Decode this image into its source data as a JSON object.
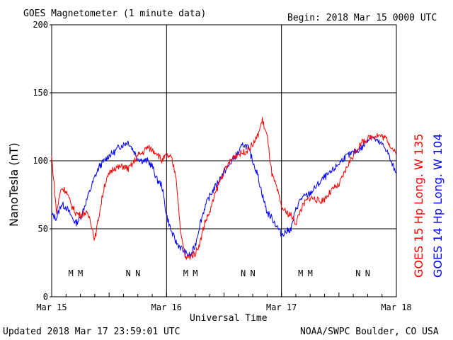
{
  "header": {
    "title": "GOES Magnetometer (1 minute data)",
    "begin": "Begin:  2018 Mar 15 0000 UTC"
  },
  "footer": {
    "updated": "Updated 2018 Mar 17 23:59:01 UTC",
    "credit": "NOAA/SWPC Boulder, CO USA"
  },
  "chart_data": {
    "type": "line",
    "ylabel": "NanoTesla (nT)",
    "xlabel": "Universal Time",
    "ylim": [
      0,
      200
    ],
    "yticks": [
      0,
      50,
      100,
      150,
      200
    ],
    "xlim_days": [
      0,
      3
    ],
    "xticks": [
      "Mar 15",
      "Mar 16",
      "Mar 17",
      "Mar 18"
    ],
    "grid": true,
    "colors": {
      "goes15": "#ff0000",
      "goes14": "#0000ff"
    },
    "legend": [
      {
        "label": "GOES 15 Hp  Long. W 135",
        "color": "#ff0000"
      },
      {
        "label": "GOES 14 Hp  Long. W 104",
        "color": "#0000ff"
      }
    ],
    "noon_midnight_markers": [
      {
        "label": "M",
        "series": "goes14",
        "x": "Mar 15 04:00"
      },
      {
        "label": "M",
        "series": "goes15",
        "x": "Mar 15 06:00"
      },
      {
        "label": "N",
        "series": "goes14",
        "x": "Mar 15 16:00"
      },
      {
        "label": "N",
        "series": "goes15",
        "x": "Mar 15 18:00"
      },
      {
        "label": "M",
        "series": "goes14",
        "x": "Mar 16 04:00"
      },
      {
        "label": "M",
        "series": "goes15",
        "x": "Mar 16 06:00"
      },
      {
        "label": "N",
        "series": "goes14",
        "x": "Mar 16 16:00"
      },
      {
        "label": "N",
        "series": "goes15",
        "x": "Mar 16 18:00"
      },
      {
        "label": "M",
        "series": "goes14",
        "x": "Mar 17 04:00"
      },
      {
        "label": "M",
        "series": "goes15",
        "x": "Mar 17 06:00"
      },
      {
        "label": "N",
        "series": "goes14",
        "x": "Mar 17 16:00"
      },
      {
        "label": "N",
        "series": "goes15",
        "x": "Mar 17 18:00"
      }
    ],
    "series": [
      {
        "name": "GOES 15 Hp  Long. W 135",
        "key": "goes15",
        "x": [
          "Mar 15 00:00",
          "Mar 15 01:00",
          "Mar 15 02:00",
          "Mar 15 03:00",
          "Mar 15 04:00",
          "Mar 15 05:00",
          "Mar 15 06:00",
          "Mar 15 07:00",
          "Mar 15 08:00",
          "Mar 15 09:00",
          "Mar 15 10:00",
          "Mar 15 11:00",
          "Mar 15 12:00",
          "Mar 15 13:00",
          "Mar 15 14:00",
          "Mar 15 15:00",
          "Mar 15 16:00",
          "Mar 15 17:00",
          "Mar 15 18:00",
          "Mar 15 19:00",
          "Mar 15 20:00",
          "Mar 15 21:00",
          "Mar 15 22:00",
          "Mar 15 23:00",
          "Mar 16 00:00",
          "Mar 16 01:00",
          "Mar 16 02:00",
          "Mar 16 03:00",
          "Mar 16 04:00",
          "Mar 16 05:00",
          "Mar 16 06:00",
          "Mar 16 07:00",
          "Mar 16 08:00",
          "Mar 16 09:00",
          "Mar 16 10:00",
          "Mar 16 11:00",
          "Mar 16 12:00",
          "Mar 16 13:00",
          "Mar 16 14:00",
          "Mar 16 15:00",
          "Mar 16 16:00",
          "Mar 16 17:00",
          "Mar 16 18:00",
          "Mar 16 19:00",
          "Mar 16 20:00",
          "Mar 16 21:00",
          "Mar 16 22:00",
          "Mar 16 23:00",
          "Mar 17 00:00",
          "Mar 17 01:00",
          "Mar 17 02:00",
          "Mar 17 03:00",
          "Mar 17 04:00",
          "Mar 17 05:00",
          "Mar 17 06:00",
          "Mar 17 07:00",
          "Mar 17 08:00",
          "Mar 17 09:00",
          "Mar 17 10:00",
          "Mar 17 11:00",
          "Mar 17 12:00",
          "Mar 17 13:00",
          "Mar 17 14:00",
          "Mar 17 15:00",
          "Mar 17 16:00",
          "Mar 17 17:00",
          "Mar 17 18:00",
          "Mar 17 19:00",
          "Mar 17 20:00",
          "Mar 17 21:00",
          "Mar 17 22:00",
          "Mar 17 23:00",
          "Mar 18 00:00"
        ],
        "values": [
          103,
          62,
          80,
          78,
          68,
          62,
          60,
          62,
          58,
          42,
          62,
          82,
          90,
          95,
          95,
          96,
          94,
          98,
          104,
          106,
          110,
          108,
          106,
          100,
          104,
          102,
          88,
          45,
          28,
          30,
          32,
          40,
          55,
          62,
          74,
          84,
          92,
          98,
          103,
          105,
          106,
          108,
          112,
          118,
          130,
          118,
          90,
          80,
          66,
          62,
          60,
          54,
          64,
          70,
          73,
          72,
          70,
          72,
          76,
          80,
          82,
          90,
          98,
          104,
          110,
          114,
          116,
          118,
          119,
          118,
          116,
          110,
          104
        ]
      },
      {
        "name": "GOES 14 Hp  Long. W 104",
        "key": "goes14",
        "x": [
          "Mar 15 00:00",
          "Mar 15 01:00",
          "Mar 15 02:00",
          "Mar 15 03:00",
          "Mar 15 04:00",
          "Mar 15 05:00",
          "Mar 15 06:00",
          "Mar 15 07:00",
          "Mar 15 08:00",
          "Mar 15 09:00",
          "Mar 15 10:00",
          "Mar 15 11:00",
          "Mar 15 12:00",
          "Mar 15 13:00",
          "Mar 15 14:00",
          "Mar 15 15:00",
          "Mar 15 16:00",
          "Mar 15 17:00",
          "Mar 15 18:00",
          "Mar 15 19:00",
          "Mar 15 20:00",
          "Mar 15 21:00",
          "Mar 15 22:00",
          "Mar 15 23:00",
          "Mar 16 00:00",
          "Mar 16 01:00",
          "Mar 16 02:00",
          "Mar 16 03:00",
          "Mar 16 04:00",
          "Mar 16 05:00",
          "Mar 16 06:00",
          "Mar 16 07:00",
          "Mar 16 08:00",
          "Mar 16 09:00",
          "Mar 16 10:00",
          "Mar 16 11:00",
          "Mar 16 12:00",
          "Mar 16 13:00",
          "Mar 16 14:00",
          "Mar 16 15:00",
          "Mar 16 16:00",
          "Mar 16 17:00",
          "Mar 16 18:00",
          "Mar 16 19:00",
          "Mar 16 20:00",
          "Mar 16 21:00",
          "Mar 16 22:00",
          "Mar 16 23:00",
          "Mar 17 00:00",
          "Mar 17 01:00",
          "Mar 17 02:00",
          "Mar 17 03:00",
          "Mar 17 04:00",
          "Mar 17 05:00",
          "Mar 17 06:00",
          "Mar 17 07:00",
          "Mar 17 08:00",
          "Mar 17 09:00",
          "Mar 17 10:00",
          "Mar 17 11:00",
          "Mar 17 12:00",
          "Mar 17 13:00",
          "Mar 17 14:00",
          "Mar 17 15:00",
          "Mar 17 16:00",
          "Mar 17 17:00",
          "Mar 17 18:00",
          "Mar 17 19:00",
          "Mar 17 20:00",
          "Mar 17 21:00",
          "Mar 17 22:00",
          "Mar 17 23:00",
          "Mar 18 00:00"
        ],
        "values": [
          60,
          58,
          68,
          66,
          60,
          54,
          58,
          68,
          78,
          88,
          96,
          100,
          104,
          106,
          110,
          112,
          114,
          108,
          102,
          100,
          100,
          96,
          86,
          82,
          60,
          48,
          40,
          36,
          32,
          30,
          38,
          54,
          66,
          74,
          80,
          86,
          92,
          96,
          102,
          106,
          112,
          110,
          100,
          90,
          75,
          62,
          58,
          52,
          46,
          48,
          50,
          64,
          72,
          74,
          76,
          80,
          84,
          88,
          90,
          94,
          98,
          102,
          104,
          106,
          108,
          110,
          116,
          118,
          114,
          112,
          108,
          98,
          92
        ]
      }
    ]
  }
}
